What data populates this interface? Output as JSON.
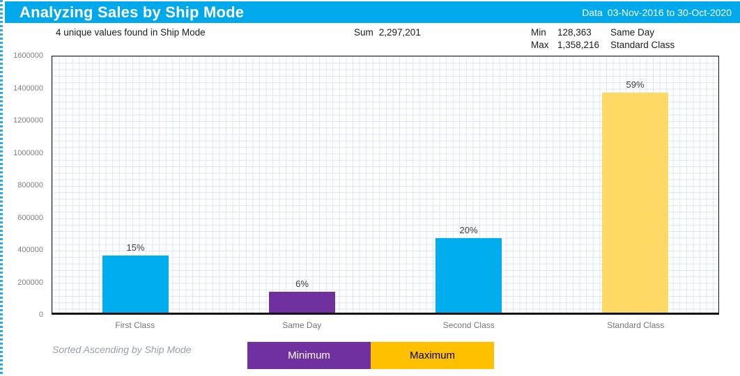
{
  "header": {
    "title": "Analyzing Sales by Ship Mode",
    "date_range_label": "Data",
    "date_range": "03-Nov-2016 to 30-Oct-2020"
  },
  "stats": {
    "unique_values": "4 unique values found in Ship Mode",
    "sum_label": "Sum",
    "sum_value": "2,297,201",
    "min_label": "Min",
    "min_value": "128,363",
    "min_category": "Same Day",
    "max_label": "Max",
    "max_value": "1,358,216",
    "max_category": "Standard Class"
  },
  "chart_data": {
    "type": "bar",
    "title": "Analyzing Sales by Ship Mode",
    "categories": [
      "First Class",
      "Same Day",
      "Second Class",
      "Standard Class"
    ],
    "values": [
      351428,
      128363,
      459194,
      1358216
    ],
    "bar_labels": [
      "15%",
      "6%",
      "20%",
      "59%"
    ],
    "bar_colors": [
      "#00AEEF",
      "#7030A0",
      "#00AEEF",
      "#FFD966"
    ],
    "xlabel": "",
    "ylabel": "",
    "ylim": [
      0,
      1600000
    ],
    "ytick_step": 200000,
    "grid": true,
    "legend_position": "bottom",
    "sort_order": "Sorted Ascending by Ship Mode"
  },
  "footer": {
    "sort_note": "Sorted Ascending by Ship Mode",
    "legend": [
      {
        "label": "Minimum",
        "color": "#7030A0",
        "text_color": "#FFFFFF"
      },
      {
        "label": "Maximum",
        "color": "#FFC000",
        "text_color": "#000000"
      }
    ]
  },
  "colors": {
    "accent": "#00A8EC",
    "bar_blue": "#00AEEF",
    "bar_purple": "#7030A0",
    "bar_gold_light": "#FFD966",
    "legend_gold": "#FFC000",
    "grid_line": "#D9E5F2"
  }
}
